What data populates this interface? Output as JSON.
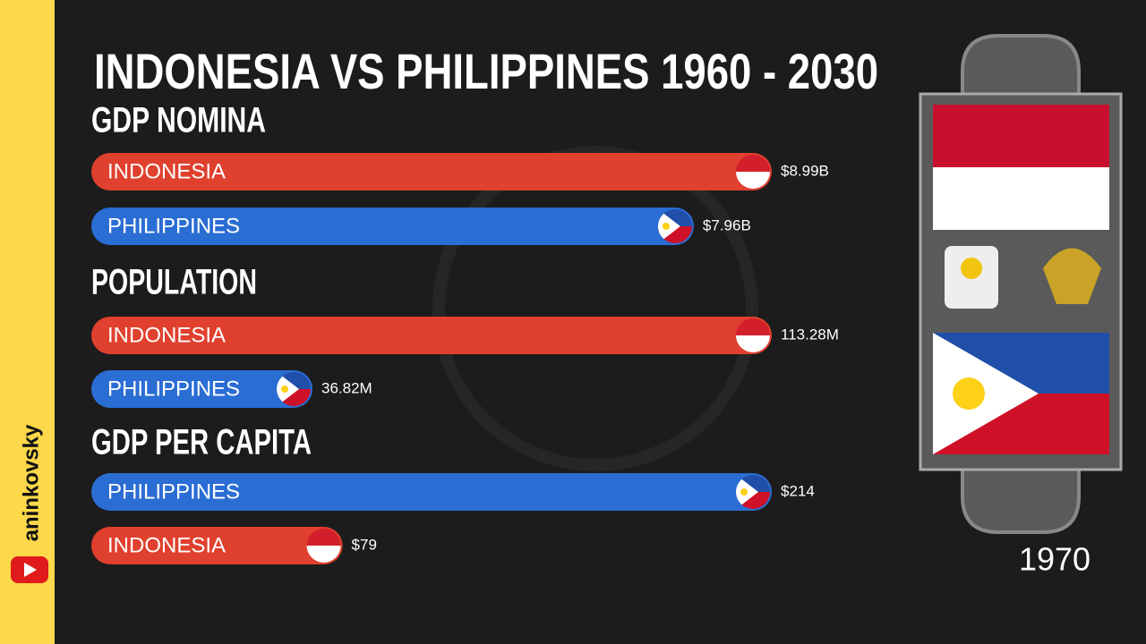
{
  "title": "INDONESIA VS PHILIPPINES 1960 - 2030",
  "chart_data": [
    {
      "type": "bar",
      "title": "GDP NOMINA",
      "categories": [
        "INDONESIA",
        "PHILIPPINES"
      ],
      "values": [
        8.99,
        7.96
      ],
      "value_labels": [
        "$8.99B",
        "$7.96B"
      ],
      "colors": [
        "#e0402e",
        "#2a6dd3"
      ]
    },
    {
      "type": "bar",
      "title": "POPULATION",
      "categories": [
        "INDONESIA",
        "PHILIPPINES"
      ],
      "values": [
        113.28,
        36.82
      ],
      "value_labels": [
        "113.28M",
        "36.82M"
      ],
      "colors": [
        "#e0402e",
        "#2a6dd3"
      ]
    },
    {
      "type": "bar",
      "title": "GDP PER CAPITA",
      "categories": [
        "PHILIPPINES",
        "INDONESIA"
      ],
      "values": [
        214,
        79
      ],
      "value_labels": [
        "$214",
        "$79"
      ],
      "colors": [
        "#2a6dd3",
        "#e0402e"
      ]
    }
  ],
  "year": "1970",
  "channel": "aninkovsky"
}
